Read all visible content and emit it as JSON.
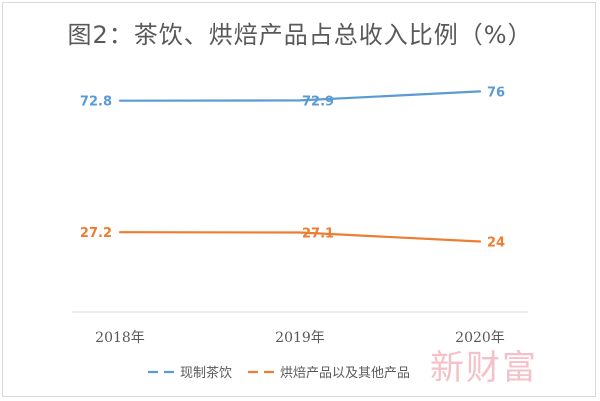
{
  "chart_data": {
    "type": "line",
    "title": "图2：茶饮、烘焙产品占总收入比例（%）",
    "categories": [
      "2018年",
      "2019年",
      "2020年"
    ],
    "series": [
      {
        "name": "现制茶饮",
        "values": [
          72.8,
          72.9,
          76
        ],
        "labels": [
          "72.8",
          "72.9",
          "76"
        ],
        "color": "#5b9bd5"
      },
      {
        "name": "烘焙产品以及其他产品",
        "values": [
          27.2,
          27.1,
          24
        ],
        "labels": [
          "27.2",
          "27.1",
          "24"
        ],
        "color": "#ed7d31"
      }
    ],
    "ylim": [
      0,
      100
    ],
    "grid": false,
    "legend": "bottom"
  },
  "watermark": "新财富"
}
